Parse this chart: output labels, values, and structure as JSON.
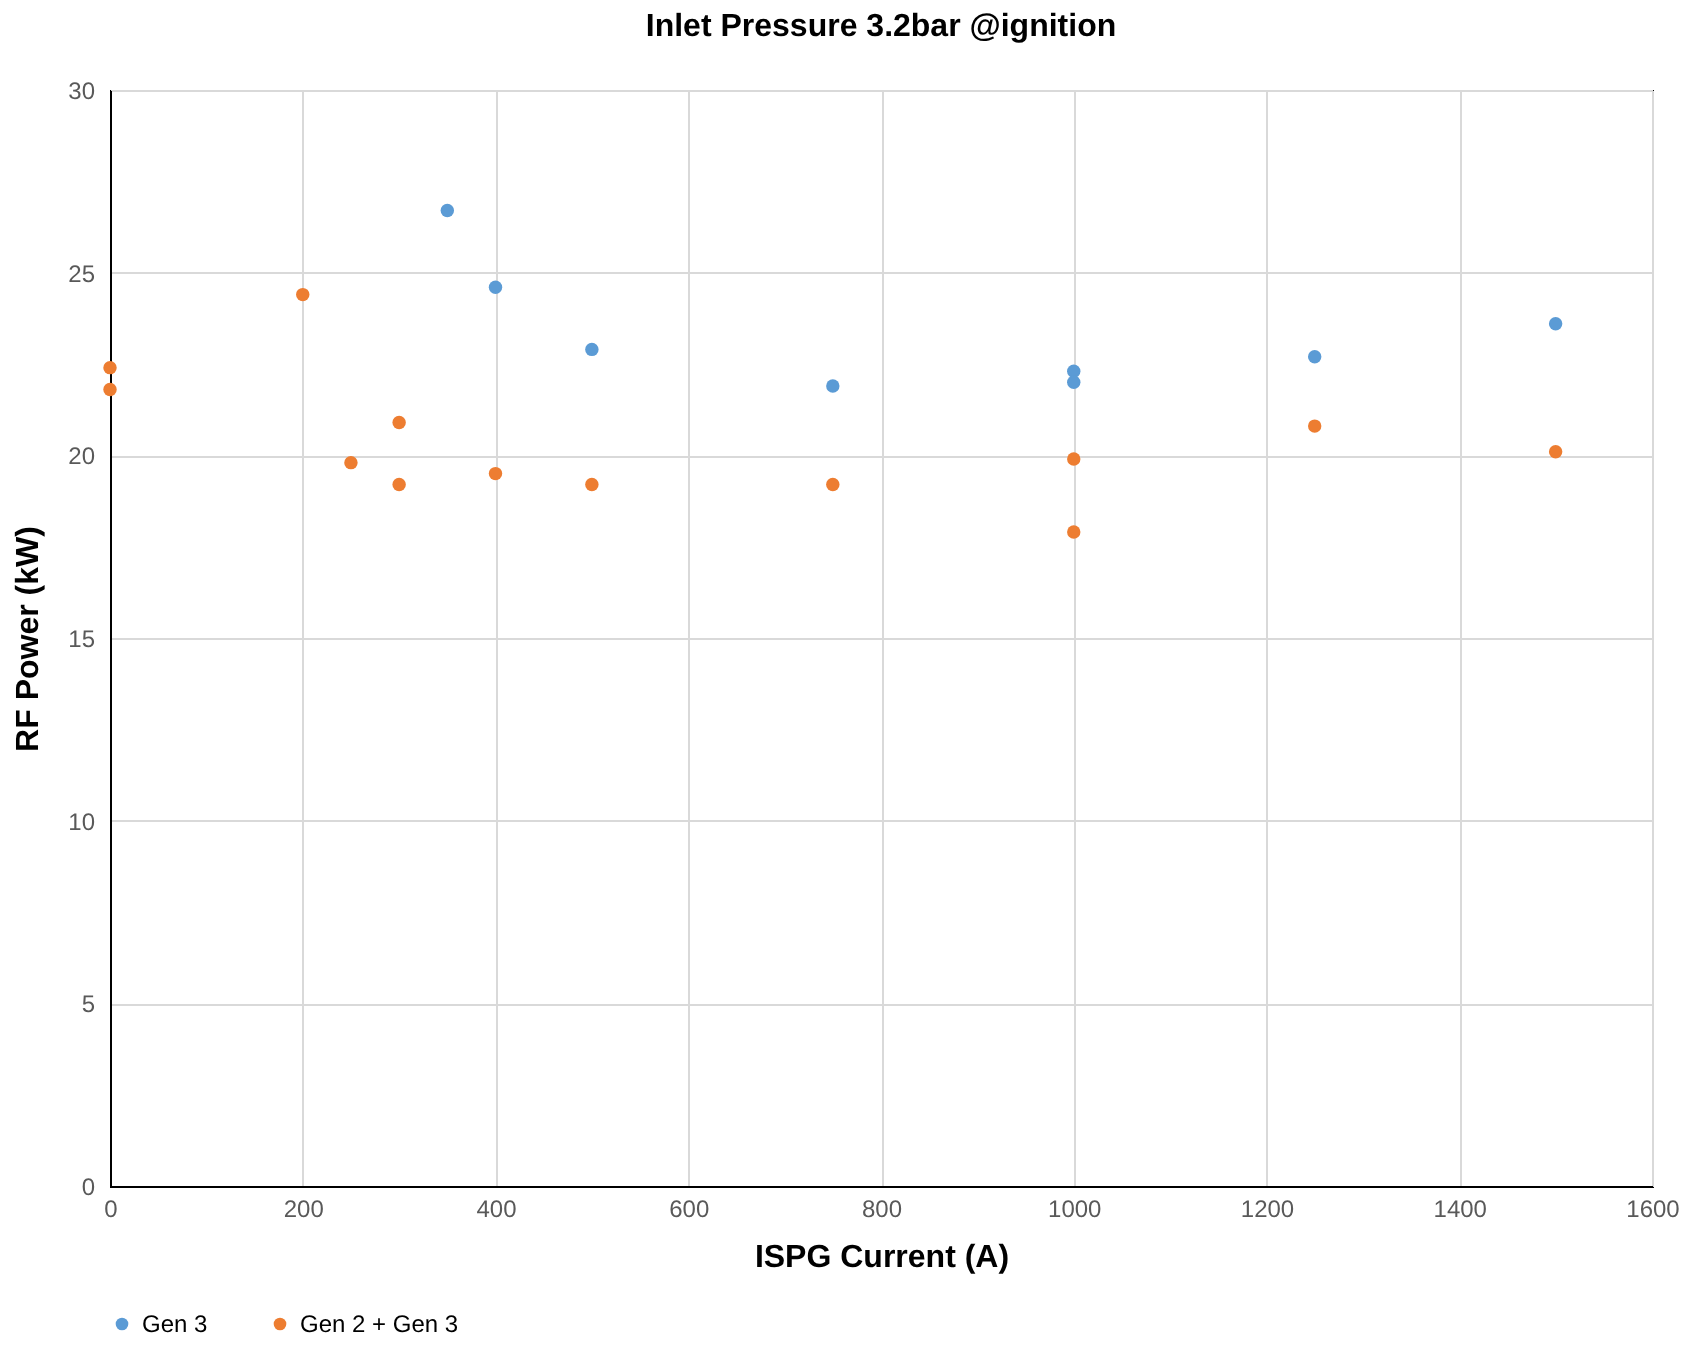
{
  "chart_data": {
    "type": "scatter",
    "title": "Inlet Pressure 3.2bar @ignition",
    "xlabel": "ISPG Current (A)",
    "ylabel": "RF Power (kW)",
    "xlim": [
      0,
      1600
    ],
    "xticks": [
      0,
      200,
      400,
      600,
      800,
      1000,
      1200,
      1400,
      1600
    ],
    "ylim": [
      0,
      30
    ],
    "yticks": [
      0,
      5,
      10,
      15,
      20,
      25,
      30
    ],
    "grid": true,
    "legend": "bottom",
    "marker": "circle",
    "series": [
      {
        "name": "Gen 3",
        "color": "#5b9bd5",
        "x": [
          350,
          400,
          500,
          750,
          1000,
          1000,
          1250,
          1500
        ],
        "values": [
          26.7,
          24.6,
          22.9,
          21.9,
          22.3,
          22.0,
          22.7,
          23.6
        ]
      },
      {
        "name": "Gen 2 + Gen 3",
        "color": "#ed7d31",
        "x": [
          0,
          0,
          200,
          250,
          300,
          300,
          400,
          500,
          750,
          1000,
          1000,
          1250,
          1500
        ],
        "values": [
          22.4,
          21.8,
          24.4,
          19.8,
          20.9,
          19.2,
          19.5,
          19.2,
          19.2,
          19.9,
          17.9,
          20.8,
          20.1
        ]
      }
    ]
  }
}
